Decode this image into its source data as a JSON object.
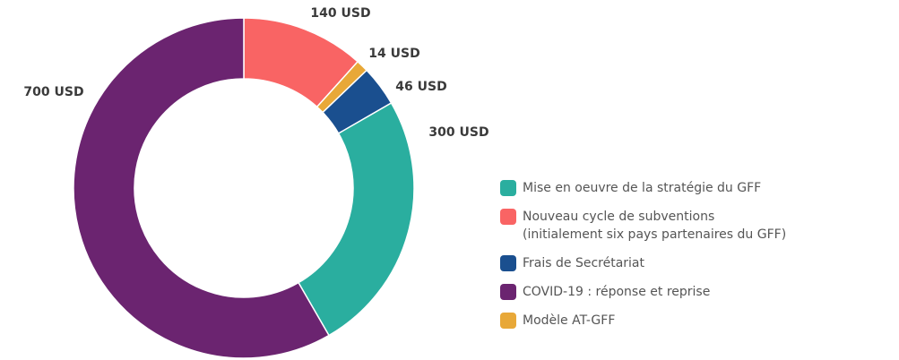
{
  "chart_data": {
    "type": "donut",
    "categories": [
      "Nouveau cycle de subventions\n(initialement six pays partenaires du GFF)",
      "Modèle AT-GFF",
      "Frais de Secrétariat",
      "Mise en oeuvre de la stratégie du GFF",
      "COVID-19 : réponse et reprise"
    ],
    "values": [
      140,
      14,
      46,
      300,
      700
    ],
    "value_labels": [
      "140 USD",
      "14 USD",
      "46 USD",
      "300 USD",
      "700 USD"
    ],
    "colors": [
      "#f96464",
      "#e8a838",
      "#1a4f8f",
      "#2aae9f",
      "#6b2470"
    ],
    "legend_order": [
      3,
      0,
      2,
      4,
      1
    ]
  }
}
